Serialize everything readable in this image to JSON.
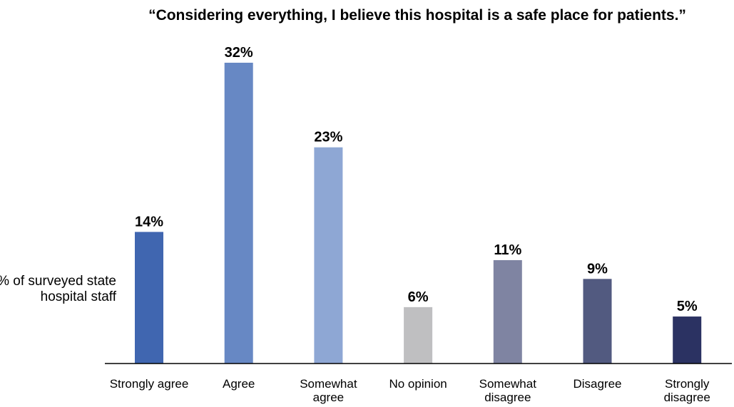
{
  "chart_data": {
    "type": "bar",
    "title": "“Considering everything, I believe this hospital is a safe place for patients.”",
    "ylabel": "% of surveyed state hospital staff",
    "categories": [
      "Strongly agree",
      "Agree",
      "Somewhat agree",
      "No opinion",
      "Somewhat disagree",
      "Disagree",
      "Strongly disagree"
    ],
    "values": [
      14,
      32,
      23,
      6,
      11,
      9,
      5
    ],
    "data_labels": [
      "14%",
      "32%",
      "23%",
      "6%",
      "11%",
      "9%",
      "5%"
    ],
    "colors": [
      "#4066b0",
      "#6788c4",
      "#8ea7d4",
      "#bfbfc1",
      "#7f84a2",
      "#525a80",
      "#2b3262"
    ],
    "ylim": [
      0,
      32
    ],
    "grid": false,
    "legend": "none"
  }
}
